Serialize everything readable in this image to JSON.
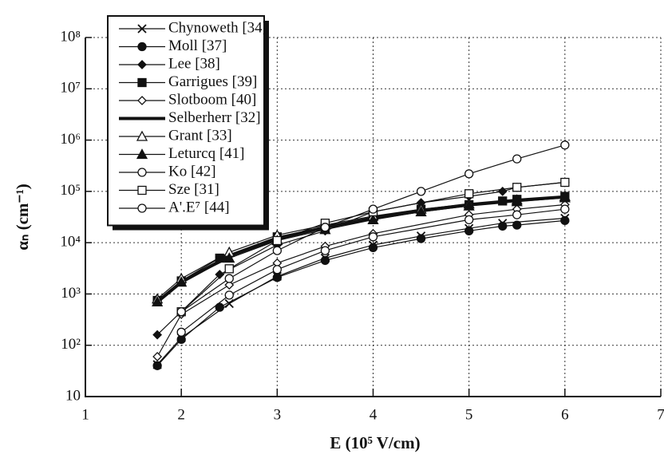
{
  "chart_data": {
    "type": "line",
    "xlabel": "E (10⁵ V/cm)",
    "ylabel": "αₙ (cm⁻¹)",
    "xlim": [
      1,
      7
    ],
    "xticks": [
      1,
      2,
      3,
      4,
      5,
      6,
      7
    ],
    "ylim": [
      10,
      100000000
    ],
    "log_y": true,
    "yticks": [
      10,
      {
        "value": 100,
        "label": "10²"
      },
      {
        "value": 1000,
        "label": "10³"
      },
      {
        "value": 10000,
        "label": "10⁴"
      },
      {
        "value": 100000,
        "label": "10⁵"
      },
      {
        "value": 1000000,
        "label": "10⁶"
      },
      {
        "value": 10000000,
        "label": "10⁷"
      },
      {
        "value": 100000000,
        "label": "10⁸"
      }
    ],
    "grid": true,
    "legend": "upper left",
    "series": [
      {
        "name": "Chynoweth [34]",
        "color": "#111111",
        "marker": "x",
        "line_width": 1.2,
        "x": [
          1.75,
          2,
          2.5,
          3,
          3.5,
          4,
          4.5,
          5,
          5.35,
          6
        ],
        "values": [
          42,
          140,
          650,
          2200,
          5000,
          9000,
          13500,
          19000,
          24000,
          30000
        ]
      },
      {
        "name": "Moll [37]",
        "color": "#111111",
        "marker": "circle-filled",
        "line_width": 1.2,
        "x": [
          1.75,
          2,
          2.4,
          3,
          3.5,
          4,
          4.5,
          5,
          5.35,
          5.5,
          6
        ],
        "values": [
          40,
          130,
          550,
          2100,
          4500,
          8000,
          12000,
          17000,
          21000,
          22000,
          27000
        ]
      },
      {
        "name": "Lee [38]",
        "color": "#111111",
        "marker": "diamond-filled",
        "line_width": 1.2,
        "x": [
          1.75,
          2.4,
          3,
          3.5,
          4,
          4.5,
          5,
          5.35,
          5.5,
          6
        ],
        "values": [
          160,
          2400,
          9000,
          17000,
          40000,
          60000,
          80000,
          100000,
          120000,
          150000
        ]
      },
      {
        "name": "Garrigues [39]",
        "color": "#111111",
        "marker": "square-filled",
        "line_width": 1.2,
        "x": [
          1.75,
          2,
          2.4,
          3,
          3.5,
          4,
          4.5,
          5,
          5.35,
          5.5,
          6
        ],
        "values": [
          750,
          1800,
          5000,
          13000,
          20000,
          32000,
          45000,
          55000,
          65000,
          70000,
          80000
        ]
      },
      {
        "name": "Slotboom [40]",
        "color": "#111111",
        "marker": "diamond-open",
        "line_width": 1.2,
        "x": [
          1.75,
          2,
          2.5,
          3,
          3.5,
          4,
          5,
          5.5,
          6
        ],
        "values": [
          60,
          400,
          1500,
          4000,
          8500,
          15000,
          35000,
          45000,
          55000
        ]
      },
      {
        "name": "Selberherr [32]",
        "color": "#111111",
        "marker": "none",
        "line_width": 4,
        "x": [
          1.75,
          2,
          2.5,
          3,
          3.5,
          4,
          4.5,
          5,
          5.5,
          6
        ],
        "values": [
          700,
          1700,
          5500,
          12000,
          20000,
          30000,
          42000,
          55000,
          67000,
          78000
        ]
      },
      {
        "name": "Grant [33]",
        "color": "#111111",
        "marker": "triangle-open",
        "line_width": 1.2,
        "x": [
          1.75,
          2,
          2.5,
          3,
          3.5,
          4,
          4.5,
          5,
          5.5,
          6
        ],
        "values": [
          800,
          2000,
          6500,
          14000,
          22000,
          33000,
          45000,
          57000,
          68000,
          80000
        ]
      },
      {
        "name": "Leturcq [41]",
        "color": "#111111",
        "marker": "triangle-filled",
        "line_width": 1.2,
        "x": [
          1.75,
          2,
          2.5,
          3,
          3.5,
          4,
          4.5,
          5,
          5.5,
          6
        ],
        "values": [
          700,
          1700,
          5000,
          11000,
          18000,
          28000,
          40000,
          52000,
          63000,
          75000
        ]
      },
      {
        "name": "Ko [42]",
        "color": "#111111",
        "marker": "circle-open",
        "line_width": 1.2,
        "x": [
          2,
          2.5,
          3,
          3.5,
          4,
          5,
          5.5,
          6
        ],
        "values": [
          180,
          950,
          3000,
          7000,
          13000,
          28000,
          35000,
          45000
        ]
      },
      {
        "name": "Sze [31]",
        "color": "#111111",
        "marker": "square-open",
        "line_width": 1.2,
        "x": [
          2,
          2.5,
          3,
          3.5,
          4,
          5,
          5.5,
          6
        ],
        "values": [
          450,
          3100,
          11000,
          24000,
          40000,
          90000,
          120000,
          150000
        ]
      },
      {
        "name": "A'.E⁷ [44]",
        "color": "#111111",
        "marker": "circle-open",
        "line_width": 1.2,
        "x": [
          2,
          2.5,
          3,
          3.5,
          4,
          4.5,
          5,
          5.5,
          6
        ],
        "values": [
          450,
          2000,
          7000,
          20000,
          45000,
          100000,
          220000,
          430000,
          800000
        ]
      }
    ]
  }
}
